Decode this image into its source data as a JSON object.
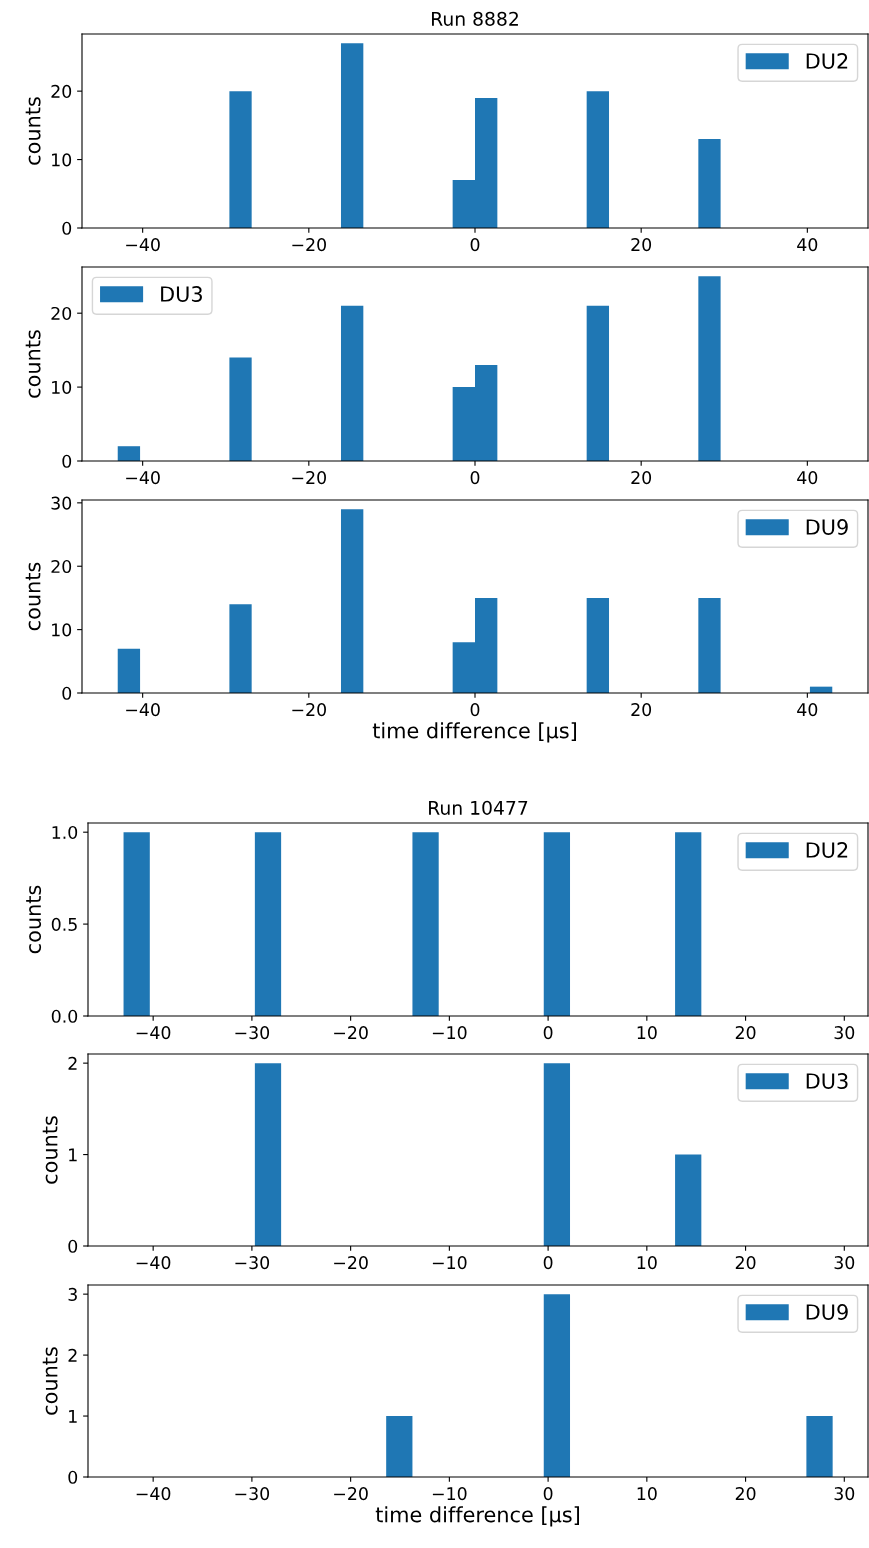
{
  "chart_data": [
    {
      "type": "histogram",
      "title": "Run 8882",
      "ylabel": "counts",
      "legend": "top right",
      "bins": [
        -43,
        -40.31,
        -37.63,
        -34.94,
        -32.25,
        -29.56,
        -26.88,
        -24.19,
        -21.5,
        -18.81,
        -16.13,
        -13.44,
        -10.75,
        -8.06,
        -5.38,
        -2.69,
        0,
        2.69,
        5.38,
        8.06,
        10.75,
        13.44,
        16.13,
        18.81,
        21.5,
        24.19,
        26.88,
        29.56,
        32.25,
        34.94,
        37.63,
        40.31,
        43
      ],
      "series": [
        {
          "name": "DU2",
          "color": "#1f77b4",
          "values": [
            0,
            0,
            0,
            0,
            0,
            20,
            0,
            0,
            0,
            0,
            27,
            0,
            0,
            0,
            0,
            7,
            19,
            0,
            0,
            0,
            0,
            20,
            0,
            0,
            0,
            0,
            13,
            0,
            0,
            0,
            0,
            0
          ]
        }
      ],
      "xlim": [
        -47.3,
        47.3
      ],
      "xticks": [
        -40,
        -20,
        0,
        20,
        40
      ],
      "ylim": [
        0,
        28.35
      ],
      "yticks": [
        0,
        10,
        20
      ]
    },
    {
      "type": "histogram",
      "ylabel": "counts",
      "legend": "top left",
      "bins": [
        -43,
        -40.31,
        -37.63,
        -34.94,
        -32.25,
        -29.56,
        -26.88,
        -24.19,
        -21.5,
        -18.81,
        -16.13,
        -13.44,
        -10.75,
        -8.06,
        -5.38,
        -2.69,
        0,
        2.69,
        5.38,
        8.06,
        10.75,
        13.44,
        16.13,
        18.81,
        21.5,
        24.19,
        26.88,
        29.56,
        32.25,
        34.94,
        37.63,
        40.31,
        43
      ],
      "series": [
        {
          "name": "DU3",
          "color": "#1f77b4",
          "values": [
            2,
            0,
            0,
            0,
            0,
            14,
            0,
            0,
            0,
            0,
            21,
            0,
            0,
            0,
            0,
            10,
            13,
            0,
            0,
            0,
            0,
            21,
            0,
            0,
            0,
            0,
            25,
            0,
            0,
            0,
            0,
            0
          ]
        }
      ],
      "xlim": [
        -47.3,
        47.3
      ],
      "xticks": [
        -40,
        -20,
        0,
        20,
        40
      ],
      "ylim": [
        0,
        26.25
      ],
      "yticks": [
        0,
        10,
        20
      ]
    },
    {
      "type": "histogram",
      "ylabel": "counts",
      "xlabel": "time difference [μs]",
      "legend": "top right",
      "bins": [
        -43,
        -40.31,
        -37.63,
        -34.94,
        -32.25,
        -29.56,
        -26.88,
        -24.19,
        -21.5,
        -18.81,
        -16.13,
        -13.44,
        -10.75,
        -8.06,
        -5.38,
        -2.69,
        0,
        2.69,
        5.38,
        8.06,
        10.75,
        13.44,
        16.13,
        18.81,
        21.5,
        24.19,
        26.88,
        29.56,
        32.25,
        34.94,
        37.63,
        40.31,
        43
      ],
      "series": [
        {
          "name": "DU9",
          "color": "#1f77b4",
          "values": [
            7,
            0,
            0,
            0,
            0,
            14,
            0,
            0,
            0,
            0,
            29,
            0,
            0,
            0,
            0,
            8,
            15,
            0,
            0,
            0,
            0,
            15,
            0,
            0,
            0,
            0,
            15,
            0,
            0,
            0,
            0,
            1
          ]
        }
      ],
      "xlim": [
        -47.3,
        47.3
      ],
      "xticks": [
        -40,
        -20,
        0,
        20,
        40
      ],
      "ylim": [
        0,
        30.45
      ],
      "yticks": [
        0,
        10,
        20,
        30
      ]
    },
    {
      "type": "histogram",
      "title": "Run 10477",
      "ylabel": "counts",
      "legend": "top right",
      "bins": [
        -43,
        -40.34,
        -37.68,
        -35.02,
        -32.36,
        -29.7,
        -27.04,
        -24.38,
        -21.72,
        -19.06,
        -16.4,
        -13.74,
        -11.08,
        -8.42,
        -5.76,
        -3.1,
        -0.44,
        2.22,
        4.88,
        7.54,
        10.2,
        12.86,
        15.52,
        18.18,
        20.84,
        23.5,
        26.16,
        28.82
      ],
      "series": [
        {
          "name": "DU2",
          "color": "#1f77b4",
          "values": [
            1,
            0,
            0,
            0,
            0,
            1,
            0,
            0,
            0,
            0,
            0,
            1,
            0,
            0,
            0,
            0,
            1,
            0,
            0,
            0,
            0,
            1,
            0,
            0,
            0,
            0,
            0
          ]
        }
      ],
      "xlim": [
        -46.6,
        32.4
      ],
      "xticks": [
        -40,
        -30,
        -20,
        -10,
        0,
        10,
        20,
        30
      ],
      "ylim": [
        0,
        1.05
      ],
      "yticks": [
        {
          "value": 0,
          "label": "0.0"
        },
        {
          "value": 0.5,
          "label": "0.5"
        },
        {
          "value": 1,
          "label": "1.0"
        }
      ]
    },
    {
      "type": "histogram",
      "ylabel": "counts",
      "legend": "top right",
      "bins": [
        -43,
        -40.34,
        -37.68,
        -35.02,
        -32.36,
        -29.7,
        -27.04,
        -24.38,
        -21.72,
        -19.06,
        -16.4,
        -13.74,
        -11.08,
        -8.42,
        -5.76,
        -3.1,
        -0.44,
        2.22,
        4.88,
        7.54,
        10.2,
        12.86,
        15.52,
        18.18,
        20.84,
        23.5,
        26.16,
        28.82
      ],
      "series": [
        {
          "name": "DU3",
          "color": "#1f77b4",
          "values": [
            0,
            0,
            0,
            0,
            0,
            2,
            0,
            0,
            0,
            0,
            0,
            0,
            0,
            0,
            0,
            0,
            2,
            0,
            0,
            0,
            0,
            1,
            0,
            0,
            0,
            0,
            0
          ]
        }
      ],
      "xlim": [
        -46.6,
        32.4
      ],
      "xticks": [
        -40,
        -30,
        -20,
        -10,
        0,
        10,
        20,
        30
      ],
      "ylim": [
        0,
        2.1
      ],
      "yticks": [
        0,
        1,
        2
      ]
    },
    {
      "type": "histogram",
      "ylabel": "counts",
      "xlabel": "time difference [μs]",
      "legend": "top right",
      "bins": [
        -43,
        -40.34,
        -37.68,
        -35.02,
        -32.36,
        -29.7,
        -27.04,
        -24.38,
        -21.72,
        -19.06,
        -16.4,
        -13.74,
        -11.08,
        -8.42,
        -5.76,
        -3.1,
        -0.44,
        2.22,
        4.88,
        7.54,
        10.2,
        12.86,
        15.52,
        18.18,
        20.84,
        23.5,
        26.16,
        28.82
      ],
      "series": [
        {
          "name": "DU9",
          "color": "#1f77b4",
          "values": [
            0,
            0,
            0,
            0,
            0,
            0,
            0,
            0,
            0,
            0,
            1,
            0,
            0,
            0,
            0,
            0,
            3,
            0,
            0,
            0,
            0,
            0,
            0,
            0,
            0,
            0,
            1
          ]
        }
      ],
      "xlim": [
        -46.6,
        32.4
      ],
      "xticks": [
        -40,
        -30,
        -20,
        -10,
        0,
        10,
        20,
        30
      ],
      "ylim": [
        0,
        3.15
      ],
      "yticks": [
        0,
        1,
        2,
        3
      ]
    }
  ]
}
